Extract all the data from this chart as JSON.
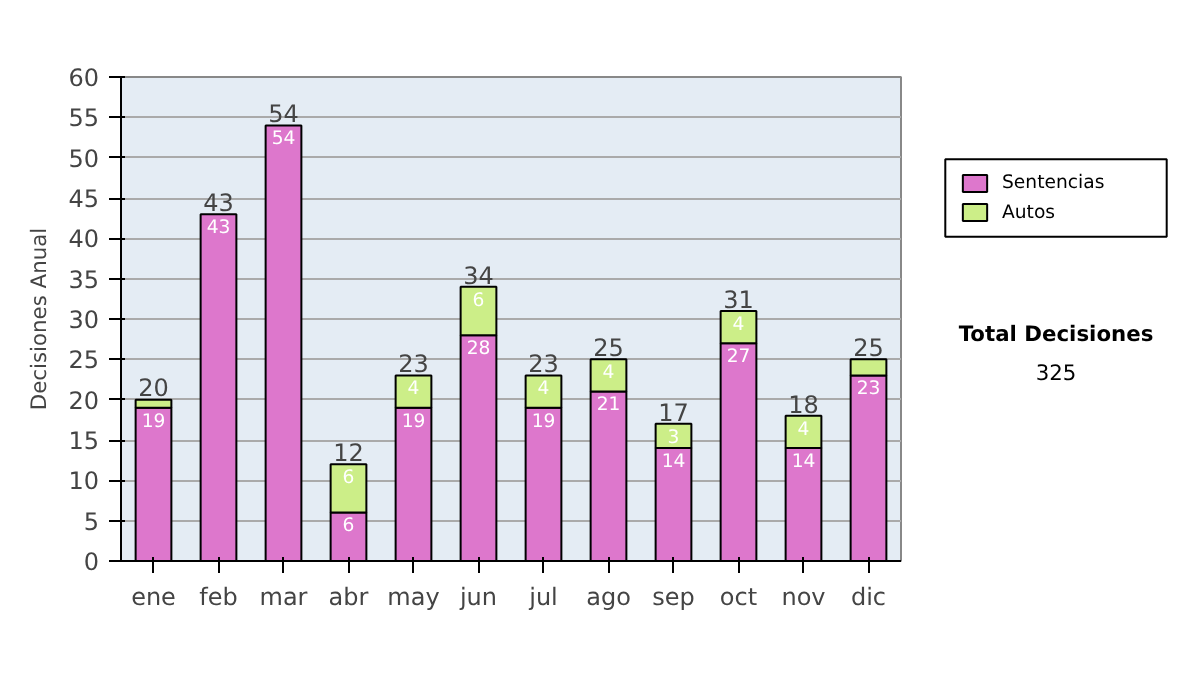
{
  "chart_data": {
    "type": "bar",
    "stacked": true,
    "ylabel": "Decisiones Anual",
    "categories": [
      "ene",
      "feb",
      "mar",
      "abr",
      "may",
      "jun",
      "jul",
      "ago",
      "sep",
      "oct",
      "nov",
      "dic"
    ],
    "series": [
      {
        "name": "Sentencias",
        "color": "#dd77cc",
        "values": [
          19,
          43,
          54,
          6,
          19,
          28,
          19,
          21,
          14,
          27,
          14,
          23
        ],
        "value_labels": [
          "19",
          "43",
          "54",
          "6",
          "19",
          "28",
          "19",
          "21",
          "14",
          "27",
          "14",
          "23"
        ]
      },
      {
        "name": "Autos",
        "color": "#ccee88",
        "values": [
          1,
          0,
          0,
          6,
          4,
          6,
          4,
          4,
          3,
          4,
          4,
          2
        ],
        "value_labels": [
          null,
          null,
          null,
          "6",
          "4",
          "6",
          "4",
          "4",
          "3",
          "4",
          "4",
          null
        ]
      }
    ],
    "totals": [
      "20",
      "43",
      "54",
      "12",
      "23",
      "34",
      "23",
      "25",
      "17",
      "31",
      "18",
      "25"
    ],
    "ylim": [
      0,
      60
    ],
    "yticks": [
      0,
      5,
      10,
      15,
      20,
      25,
      30,
      35,
      40,
      45,
      50,
      55,
      60
    ],
    "grid": "y",
    "legend": "right",
    "annotations": [
      "Total Decisiones",
      "325"
    ]
  }
}
